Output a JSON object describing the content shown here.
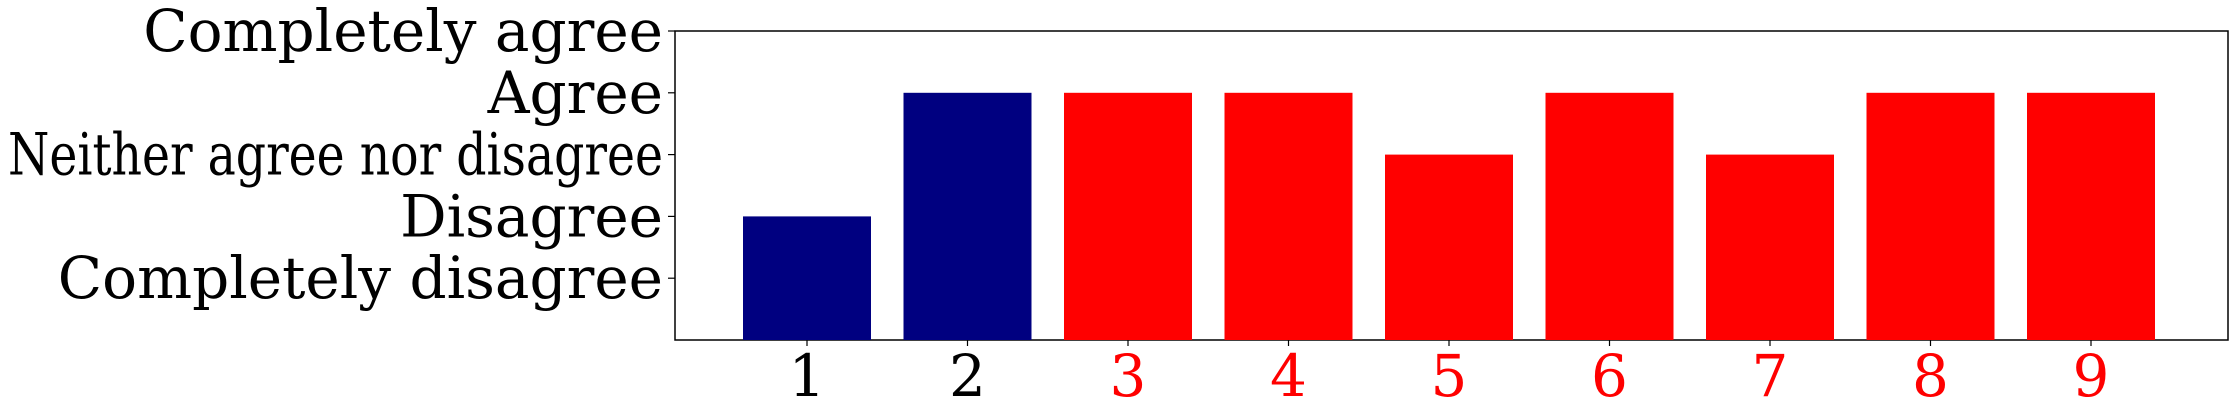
{
  "chart_data": {
    "type": "bar",
    "title": "",
    "xlabel": "",
    "ylabel": "",
    "categories": [
      "1",
      "2",
      "3",
      "4",
      "5",
      "6",
      "7",
      "8",
      "9"
    ],
    "values": [
      2,
      4,
      4,
      4,
      3,
      4,
      3,
      4,
      4
    ],
    "bar_colors": [
      "#000080",
      "#000080",
      "#ff0000",
      "#ff0000",
      "#ff0000",
      "#ff0000",
      "#ff0000",
      "#ff0000",
      "#ff0000"
    ],
    "tick_label_colors": [
      "#000000",
      "#000000",
      "#ff0000",
      "#ff0000",
      "#ff0000",
      "#ff0000",
      "#ff0000",
      "#ff0000",
      "#ff0000"
    ],
    "y_ticks": [
      {
        "value": 1,
        "label": "Completely disagree"
      },
      {
        "value": 2,
        "label": "Disagree"
      },
      {
        "value": 3,
        "label": "Neither agree nor disagree"
      },
      {
        "value": 4,
        "label": "Agree"
      },
      {
        "value": 5,
        "label": "Completely agree"
      }
    ],
    "ylim": [
      0,
      5
    ],
    "grid": false,
    "legend": "none"
  }
}
